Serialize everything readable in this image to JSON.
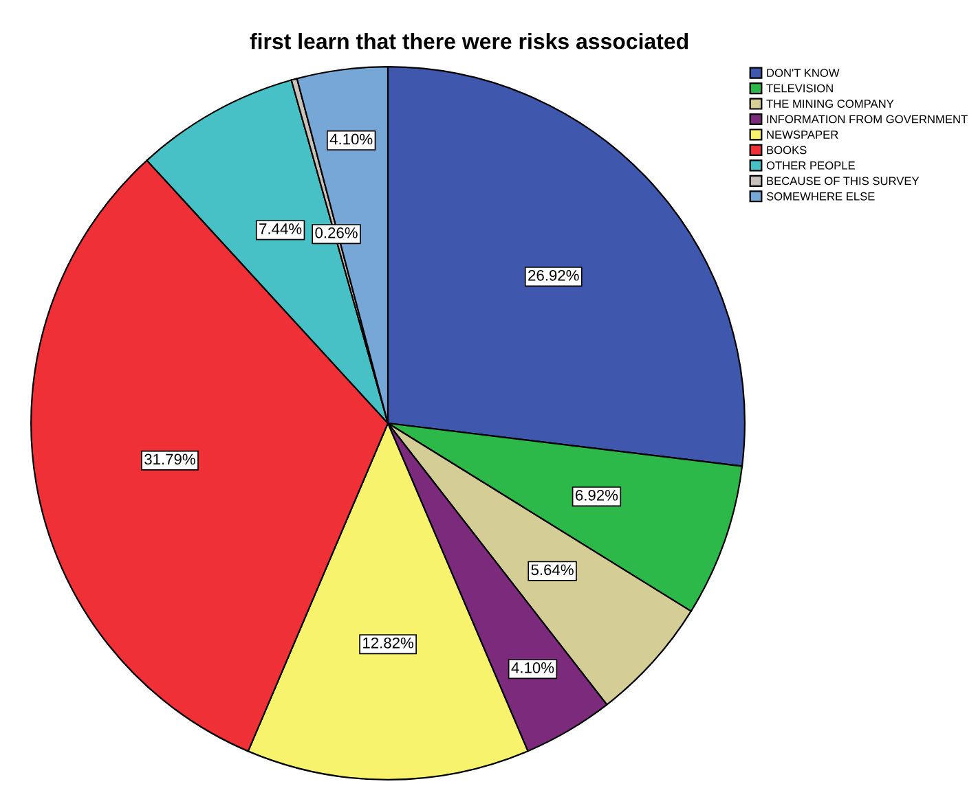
{
  "chart_data": {
    "type": "pie",
    "title": "first learn that there were risks associated",
    "categories": [
      "DON'T KNOW",
      "TELEVISION",
      "THE MINING COMPANY",
      "INFORMATION FROM GOVERNMENT",
      "NEWSPAPER",
      "BOOKS",
      "OTHER PEOPLE",
      "BECAUSE OF THIS SURVEY",
      "SOMEWHERE ELSE"
    ],
    "values": [
      26.92,
      6.92,
      5.64,
      4.1,
      12.82,
      31.79,
      7.44,
      0.26,
      4.1
    ],
    "value_labels": [
      "26.92%",
      "6.92%",
      "5.64%",
      "4.10%",
      "12.82%",
      "31.79%",
      "7.44%",
      "0.26%",
      "4.10%"
    ],
    "colors": [
      "#3f58ad",
      "#2db84a",
      "#d4cd96",
      "#7b2a7c",
      "#f7f36d",
      "#ef3037",
      "#48c1c6",
      "#c8c2bb",
      "#76a7d6"
    ],
    "legend": "top right"
  }
}
